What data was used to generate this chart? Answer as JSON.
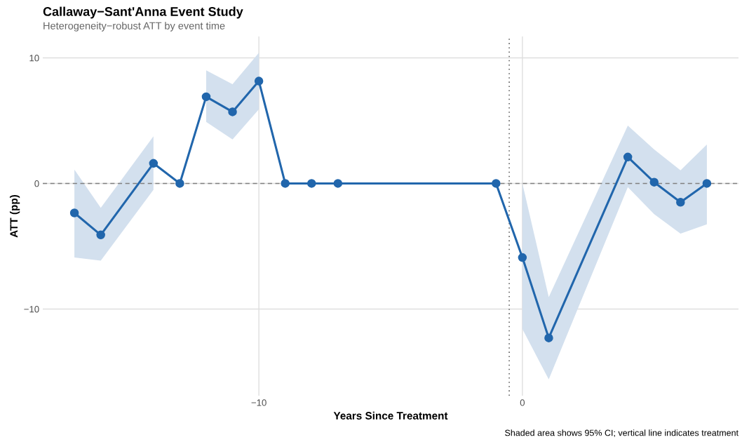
{
  "chart_data": {
    "type": "line",
    "title": "Callaway−Sant'Anna Event Study",
    "subtitle": "Heterogeneity−robust ATT by event time",
    "xlabel": "Years Since Treatment",
    "ylabel": "ATT (pp)",
    "annotations": [
      "Shaded area shows 95% CI; vertical line indicates treatment"
    ],
    "x": [
      -17,
      -16,
      -14,
      -13,
      -12,
      -11,
      -10,
      -9,
      -8,
      -7,
      -1,
      0,
      1,
      4,
      5,
      6,
      7
    ],
    "series": [
      {
        "color": "#2166ac",
        "values": [
          -2.35,
          -4.1,
          1.6,
          0,
          6.9,
          5.7,
          8.15,
          0,
          0,
          0,
          0,
          -5.9,
          -12.3,
          2.1,
          0.1,
          -1.5,
          0
        ],
        "lower": [
          -5.9,
          -6.15,
          -0.5,
          null,
          4.9,
          3.5,
          5.9,
          null,
          null,
          null,
          null,
          -11.6,
          -15.6,
          -0.3,
          -2.45,
          -4.0,
          -3.25
        ],
        "upper": [
          1.1,
          -1.95,
          3.75,
          null,
          9.0,
          7.9,
          10.4,
          null,
          null,
          null,
          null,
          0,
          -9.05,
          4.6,
          2.7,
          1.05,
          3.1
        ]
      }
    ],
    "xlim": [
      -18.2,
      8.2
    ],
    "ylim": [
      -16.9,
      11.7
    ],
    "xticks": [
      -10,
      0
    ],
    "yticks": [
      -10,
      0,
      10
    ],
    "ref_lines": [
      {
        "axis": "y",
        "value": 0,
        "color": "#808080",
        "line_style": "dashed"
      },
      {
        "axis": "x",
        "value": -0.5,
        "color": "#555555",
        "line_style": "dotted"
      }
    ],
    "grid": true,
    "marker": "circle",
    "line_style": "solid"
  }
}
